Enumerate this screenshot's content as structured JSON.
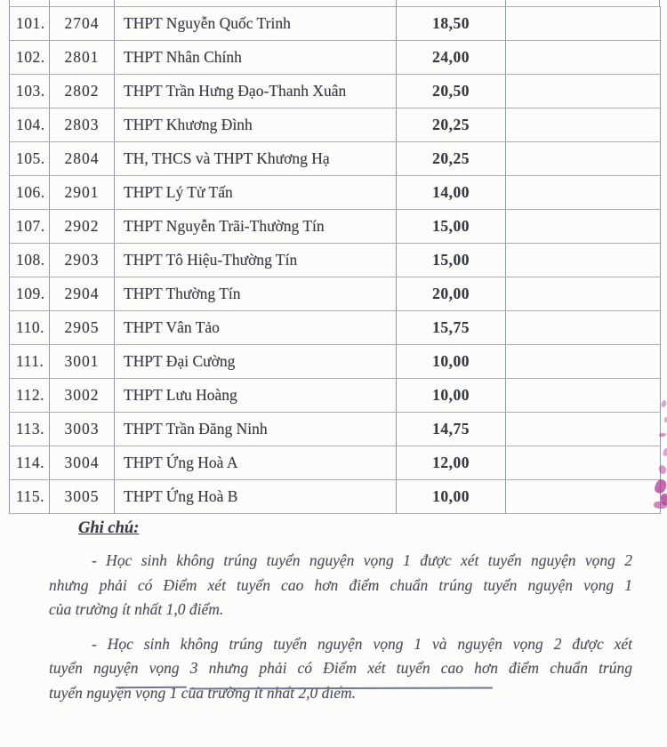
{
  "colors": {
    "paper": "#fcfcfa",
    "vline": "#9099a8",
    "hline": "#a3abc8",
    "ink": "#383b44",
    "scoreink": "#272b34",
    "noteink": "#4d505b",
    "stamp": "#b23b92"
  },
  "table": {
    "rows": [
      [
        "101.",
        "2704",
        "THPT Nguyễn Quốc Trinh",
        "18,50",
        ""
      ],
      [
        "102.",
        "2801",
        "THPT Nhân Chính",
        "24,00",
        ""
      ],
      [
        "103.",
        "2802",
        "THPT Trần Hưng Đạo-Thanh Xuân",
        "20,50",
        ""
      ],
      [
        "104.",
        "2803",
        "THPT Khương Đình",
        "20,25",
        ""
      ],
      [
        "105.",
        "2804",
        "TH, THCS và THPT Khương Hạ",
        "20,25",
        ""
      ],
      [
        "106.",
        "2901",
        "THPT Lý Tử Tấn",
        "14,00",
        ""
      ],
      [
        "107.",
        "2902",
        "THPT Nguyễn Trãi-Thường Tín",
        "15,00",
        ""
      ],
      [
        "108.",
        "2903",
        "THPT Tô Hiệu-Thường Tín",
        "15,00",
        ""
      ],
      [
        "109.",
        "2904",
        "THPT Thường Tín",
        "20,00",
        ""
      ],
      [
        "110.",
        "2905",
        "THPT Vân Tảo",
        "15,75",
        ""
      ],
      [
        "111.",
        "3001",
        "THPT Đại Cường",
        "10,00",
        ""
      ],
      [
        "112.",
        "3002",
        "THPT Lưu Hoàng",
        "10,00",
        ""
      ],
      [
        "113.",
        "3003",
        "THPT Trần Đăng Ninh",
        "14,75",
        ""
      ],
      [
        "114.",
        "3004",
        "THPT Ứng Hoà A",
        "12,00",
        ""
      ],
      [
        "115.",
        "3005",
        "THPT Ứng Hoà B",
        "10,00",
        ""
      ]
    ]
  },
  "notes": {
    "heading": "Ghi chú:",
    "paragraphs": [
      {
        "lines": [
          {
            "text": "- Học sinh không trúng tuyển nguyện vọng 1 được xét tuyển nguyện vọng 2",
            "indent": true,
            "justify": true
          },
          {
            "text": "nhưng phải có Điểm xét tuyển cao hơn điểm chuẩn trúng tuyển nguyện vọng 1",
            "indent": false,
            "justify": true
          },
          {
            "text": "của trường ít nhất 1,0 điểm.",
            "indent": false,
            "justify": false
          }
        ]
      },
      {
        "lines": [
          {
            "text": "- Học sinh không trúng tuyển nguyện vọng 1 và nguyện vọng 2 được xét",
            "indent": true,
            "justify": true
          },
          {
            "text": "tuyển nguyện vọng 3 nhưng phải có Điểm xét tuyển cao hơn điểm chuẩn trúng",
            "indent": false,
            "justify": true
          },
          {
            "text": "tuyển nguyện vọng 1 của trường ít nhất 2,0 điểm.",
            "indent": false,
            "justify": false
          }
        ]
      }
    ]
  }
}
